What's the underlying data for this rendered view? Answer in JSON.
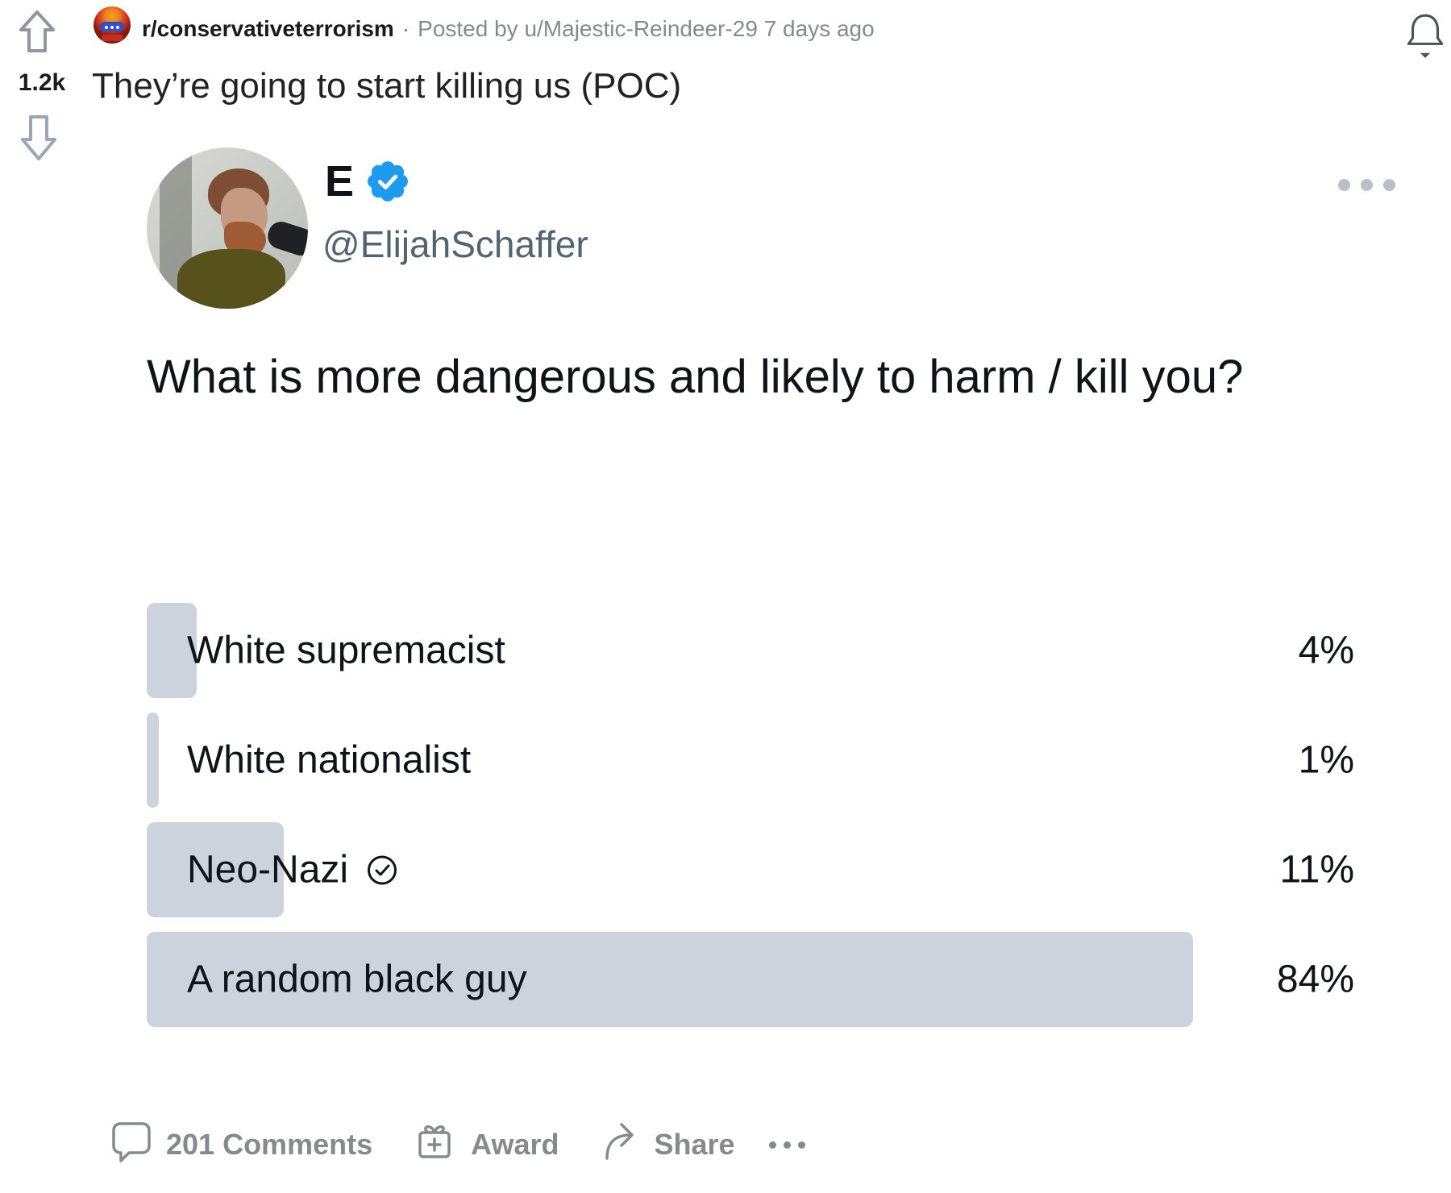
{
  "post": {
    "score": "1.2k",
    "subreddit": "r/conservativeterrorism",
    "separator": "·",
    "posted_by": "Posted by u/Majestic-Reindeer-29 7 days ago",
    "title": "They’re going to start killing us (POC)"
  },
  "tweet": {
    "display_name": "E",
    "verified_badge": "verified-badge",
    "handle": "@ElijahSchaffer",
    "question": "What is more dangerous and likely to harm / kill you?",
    "poll": {
      "options": [
        {
          "label": "White supremacist",
          "pct": 4,
          "pct_label": "4%",
          "voted": false
        },
        {
          "label": "White nationalist",
          "pct": 1,
          "pct_label": "1%",
          "voted": false
        },
        {
          "label": "Neo-Nazi",
          "pct": 11,
          "pct_label": "11%",
          "voted": true
        },
        {
          "label": "A random black guy",
          "pct": 84,
          "pct_label": "84%",
          "voted": false
        }
      ]
    }
  },
  "footer": {
    "comments_label": "201 Comments",
    "award_label": "Award",
    "share_label": "Share"
  },
  "colors": {
    "badge_blue": "#1d9bf0",
    "poll_bar_gray": "#ccd3dc",
    "footer_gray": "#878a8c",
    "handle_gray": "#536471",
    "meta_gray": "#787c7e",
    "text_dark": "#0f1419"
  }
}
